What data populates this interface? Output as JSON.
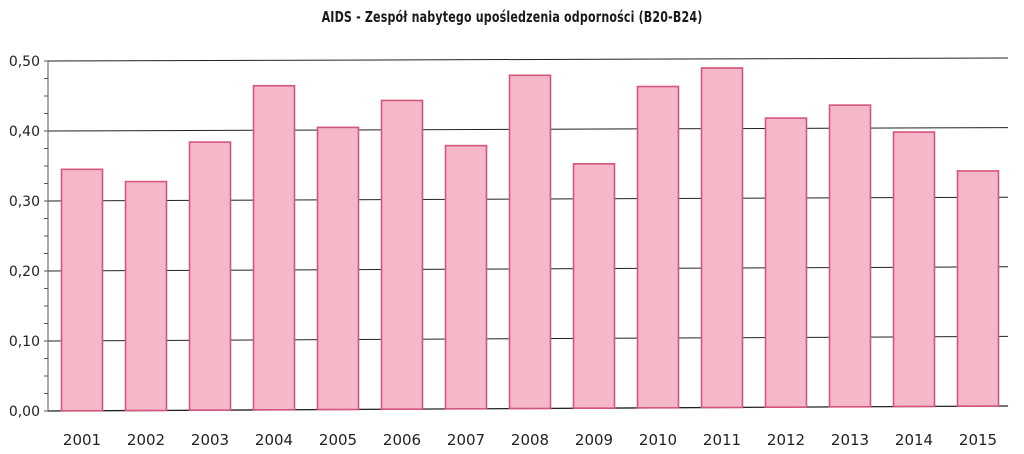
{
  "chart_data": {
    "type": "bar",
    "title": "AIDS - Zespół nabytego upośledzenia odporności (B20-B24)",
    "xlabel": "",
    "ylabel": "",
    "categories": [
      "2001",
      "2002",
      "2003",
      "2004",
      "2005",
      "2006",
      "2007",
      "2008",
      "2009",
      "2010",
      "2011",
      "2012",
      "2013",
      "2014",
      "2015"
    ],
    "values": [
      0.345,
      0.327,
      0.383,
      0.463,
      0.403,
      0.441,
      0.376,
      0.476,
      0.349,
      0.459,
      0.485,
      0.413,
      0.431,
      0.392,
      0.336
    ],
    "ylim": [
      0,
      0.5
    ],
    "yticks": [
      0.0,
      0.1,
      0.2,
      0.3,
      0.4,
      0.5
    ],
    "ytick_labels": [
      "0,00",
      "0,10",
      "0,20",
      "0,30",
      "0,40",
      "0,50"
    ],
    "grid": true,
    "bar_fill": "#f4b8c8",
    "bar_stroke": "#d4567a",
    "grid_color": "#222222"
  }
}
